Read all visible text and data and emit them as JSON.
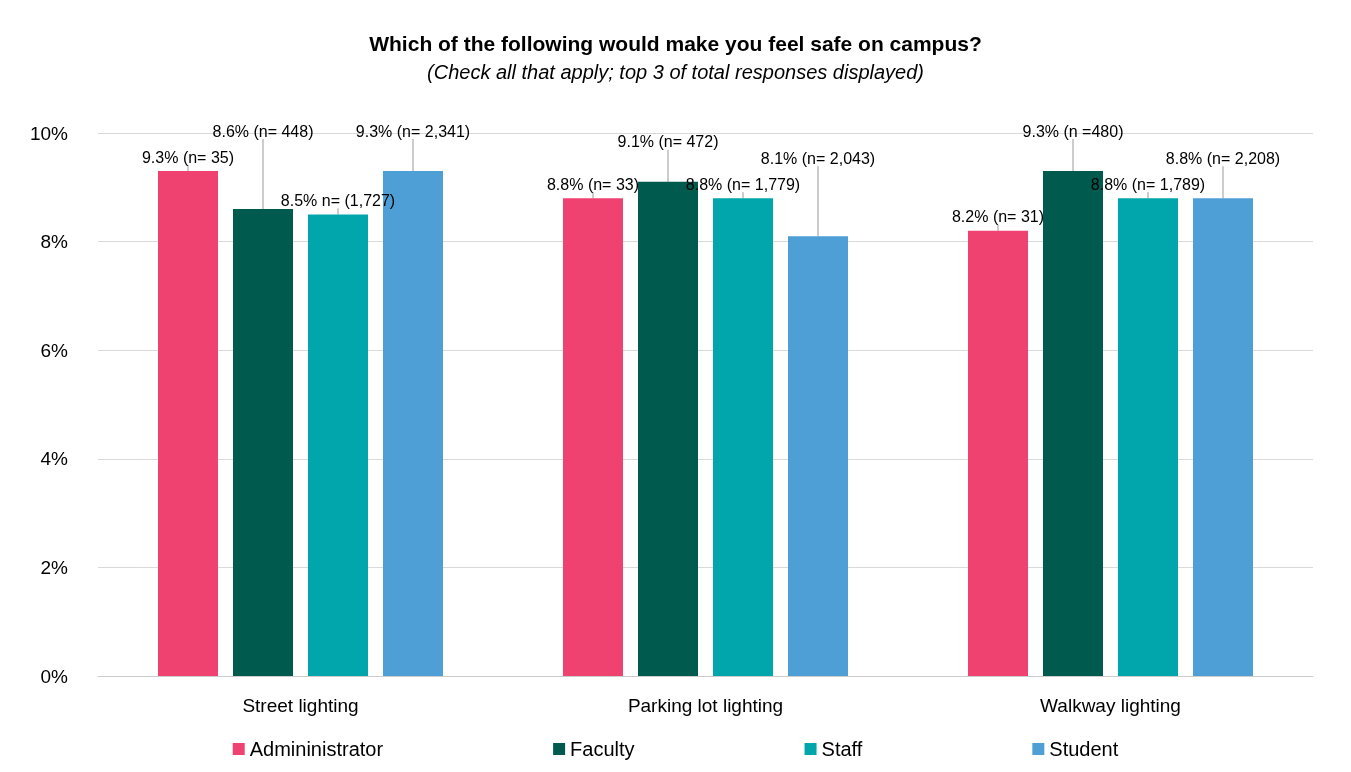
{
  "chart_data": {
    "type": "bar",
    "title": "Which of the following would make you feel safe on campus?",
    "subtitle": "(Check all that apply; top 3 of total responses displayed)",
    "categories": [
      "Street lighting",
      "Parking lot lighting",
      "Walkway lighting"
    ],
    "series": [
      {
        "name": "Admininistrator",
        "color": "#ef4270",
        "values": [
          9.3,
          8.8,
          8.2
        ],
        "value_labels": [
          "9.3% (n= 35)",
          "8.8% (n= 33)",
          "8.2% (n= 31)"
        ]
      },
      {
        "name": "Faculty",
        "color": "#005a4e",
        "values": [
          8.6,
          9.1,
          9.3
        ],
        "value_labels": [
          "8.6% (n= 448)",
          "9.1% (n= 472)",
          "9.3% (n =480)"
        ]
      },
      {
        "name": "Staff",
        "color": "#00a6ac",
        "values": [
          8.5,
          8.8,
          8.8
        ],
        "value_labels": [
          "8.5% n= (1,727)",
          "8.8% (n= 1,779)",
          "8.8% (n= 1,789)"
        ]
      },
      {
        "name": "Student",
        "color": "#4e9fd6",
        "values": [
          9.3,
          8.1,
          8.8
        ],
        "value_labels": [
          "9.3% (n= 2,341)",
          "8.1% (n= 2,043)",
          "8.8% (n= 2,208)"
        ]
      }
    ],
    "ylim": [
      0,
      10
    ],
    "yticks": [
      {
        "value": 0,
        "label": "0%"
      },
      {
        "value": 2,
        "label": "2%"
      },
      {
        "value": 4,
        "label": "4%"
      },
      {
        "value": 6,
        "label": "6%"
      },
      {
        "value": 8,
        "label": "8%"
      },
      {
        "value": 10,
        "label": "10%"
      }
    ],
    "grid": "y",
    "legend": "bottom"
  }
}
